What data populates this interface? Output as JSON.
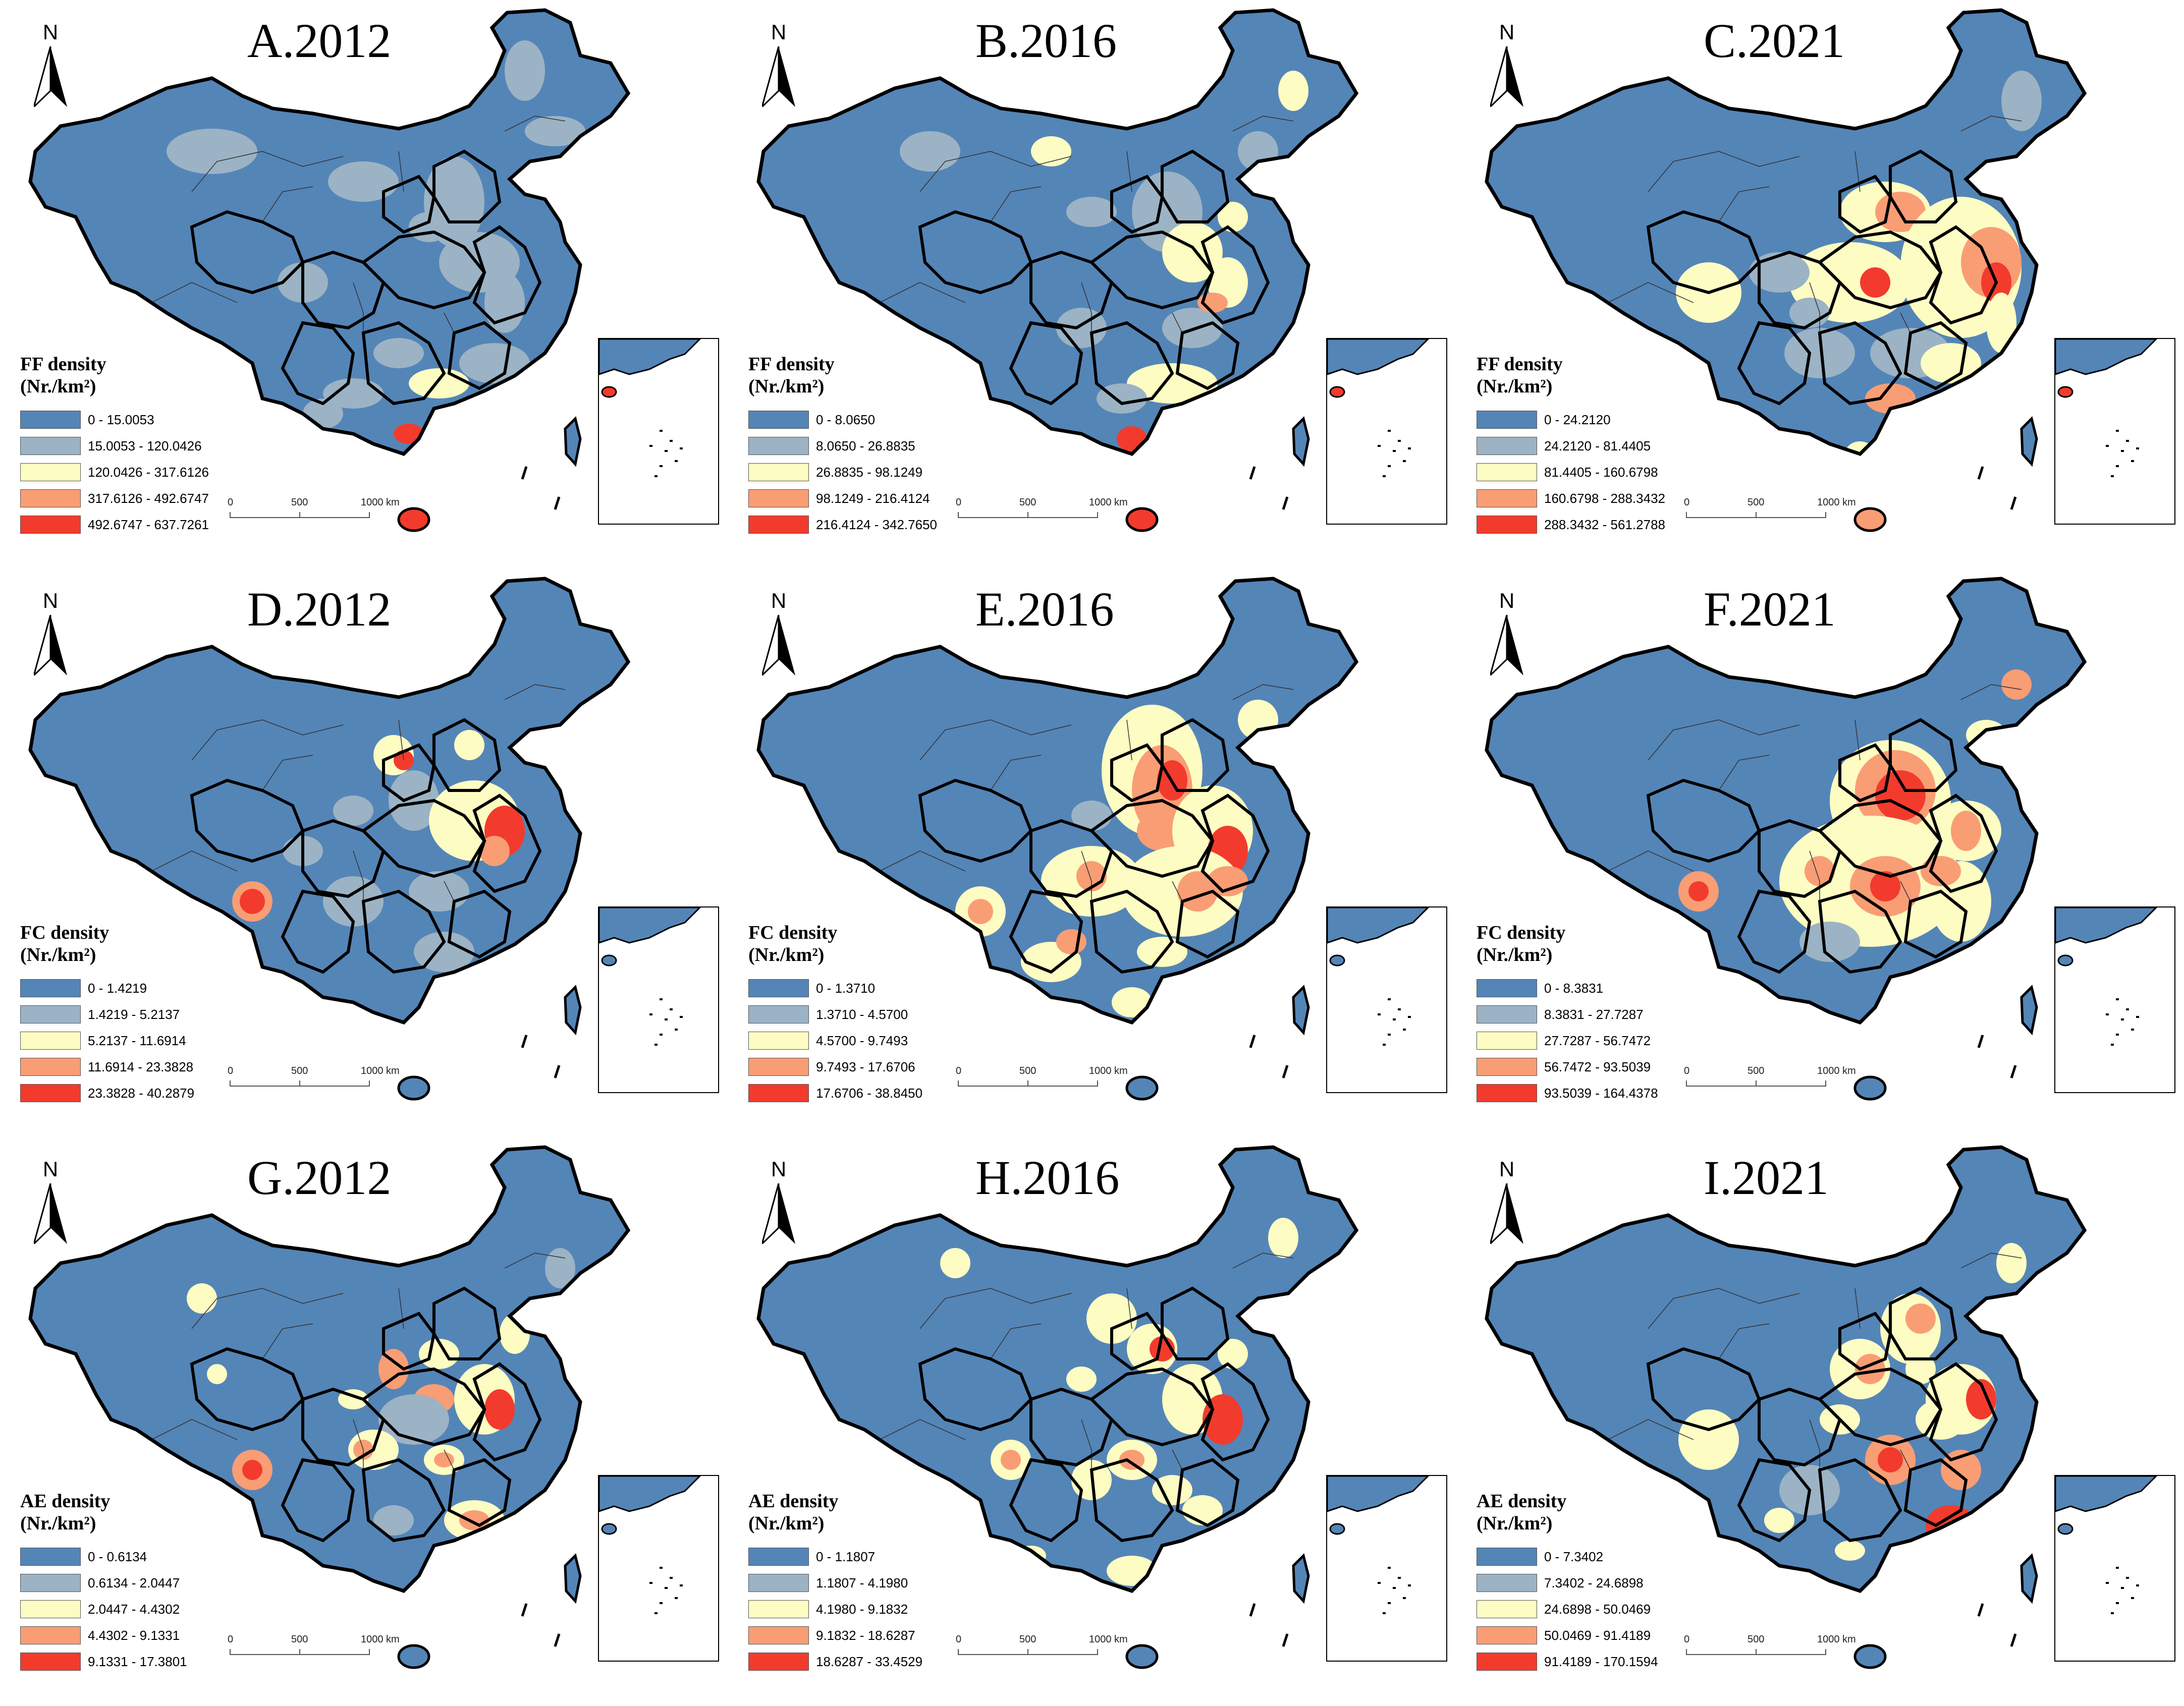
{
  "colors": [
    "#5485b7",
    "#9bb3c4",
    "#fdfcc2",
    "#f99d75",
    "#f23b2d"
  ],
  "scale_labels": [
    "0",
    "500",
    "1000 km"
  ],
  "north_label": "N",
  "panels": [
    {
      "title": "A.2012",
      "legend_title": "FF density",
      "unit": "(Nr./km²)",
      "classes": [
        "0 - 15.0053",
        "15.0053 - 120.0426",
        "120.0426 - 317.6126",
        "317.6126 - 492.6747",
        "492.6747 - 637.7261"
      ]
    },
    {
      "title": "B.2016",
      "legend_title": "FF density",
      "unit": "(Nr./km²)",
      "classes": [
        "0 - 8.0650",
        "8.0650 - 26.8835",
        "26.8835 - 98.1249",
        "98.1249 - 216.4124",
        "216.4124 - 342.7650"
      ]
    },
    {
      "title": "C.2021",
      "legend_title": "FF density",
      "unit": "(Nr./km²)",
      "classes": [
        "0 - 24.2120",
        "24.2120 - 81.4405",
        "81.4405 - 160.6798",
        "160.6798 - 288.3432",
        "288.3432 - 561.2788"
      ]
    },
    {
      "title": "D.2012",
      "legend_title": "FC density",
      "unit": "(Nr./km²)",
      "classes": [
        "0 - 1.4219",
        "1.4219 - 5.2137",
        "5.2137 - 11.6914",
        "11.6914 - 23.3828",
        "23.3828 - 40.2879"
      ]
    },
    {
      "title": "E.2016",
      "legend_title": "FC density",
      "unit": "(Nr./km²)",
      "classes": [
        "0 - 1.3710",
        "1.3710 - 4.5700",
        "4.5700 - 9.7493",
        "9.7493 - 17.6706",
        "17.6706 - 38.8450"
      ]
    },
    {
      "title": "F.2021",
      "legend_title": "FC density",
      "unit": "(Nr./km²)",
      "classes": [
        "0 - 8.3831",
        "8.3831 - 27.7287",
        "27.7287 - 56.7472",
        "56.7472 - 93.5039",
        "93.5039 - 164.4378"
      ]
    },
    {
      "title": "G.2012",
      "legend_title": "AE density",
      "unit": "(Nr./km²)",
      "classes": [
        "0 - 0.6134",
        "0.6134 - 2.0447",
        "2.0447 - 4.4302",
        "4.4302 - 9.1331",
        "9.1331 - 17.3801"
      ]
    },
    {
      "title": "H.2016",
      "legend_title": "AE density",
      "unit": "(Nr./km²)",
      "classes": [
        "0 - 1.1807",
        "1.1807 - 4.1980",
        "4.1980 - 9.1832",
        "9.1832 - 18.6287",
        "18.6287 - 33.4529"
      ]
    },
    {
      "title": "I.2021",
      "legend_title": "AE density",
      "unit": "(Nr./km²)",
      "classes": [
        "0 - 7.3402",
        "7.3402 - 24.6898",
        "24.6898 - 50.0469",
        "50.0469 - 91.4189",
        "91.4189 - 170.1594"
      ]
    }
  ]
}
